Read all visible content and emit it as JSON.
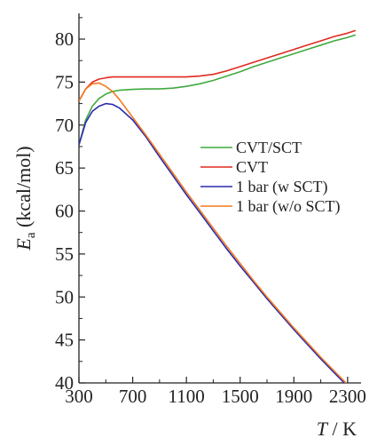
{
  "chart_data": {
    "type": "line",
    "xlabel": "T / K",
    "ylabel": "E_a (kcal/mol)",
    "xlim": [
      300,
      2400
    ],
    "ylim": [
      40,
      83
    ],
    "x_ticks": [
      300,
      700,
      1100,
      1500,
      1900,
      2300
    ],
    "y_ticks": [
      40,
      45,
      50,
      55,
      60,
      65,
      70,
      75,
      80
    ],
    "grid": false,
    "legend_position": "center-right",
    "series": [
      {
        "name": "CVT/SCT",
        "color": "#3faa3f",
        "points": [
          [
            300,
            67.7
          ],
          [
            350,
            70.6
          ],
          [
            400,
            72.2
          ],
          [
            450,
            73.1
          ],
          [
            500,
            73.6
          ],
          [
            550,
            73.9
          ],
          [
            600,
            74.05
          ],
          [
            700,
            74.15
          ],
          [
            800,
            74.2
          ],
          [
            900,
            74.2
          ],
          [
            1000,
            74.3
          ],
          [
            1100,
            74.5
          ],
          [
            1200,
            74.8
          ],
          [
            1300,
            75.2
          ],
          [
            1400,
            75.7
          ],
          [
            1500,
            76.2
          ],
          [
            1600,
            76.8
          ],
          [
            1700,
            77.3
          ],
          [
            1800,
            77.8
          ],
          [
            1900,
            78.3
          ],
          [
            2000,
            78.8
          ],
          [
            2100,
            79.3
          ],
          [
            2200,
            79.8
          ],
          [
            2300,
            80.2
          ],
          [
            2360,
            80.5
          ]
        ]
      },
      {
        "name": "CVT",
        "color": "#e02a1f",
        "points": [
          [
            300,
            72.8
          ],
          [
            350,
            74.2
          ],
          [
            400,
            75.0
          ],
          [
            450,
            75.35
          ],
          [
            500,
            75.5
          ],
          [
            550,
            75.6
          ],
          [
            600,
            75.6
          ],
          [
            700,
            75.6
          ],
          [
            800,
            75.6
          ],
          [
            900,
            75.6
          ],
          [
            1000,
            75.6
          ],
          [
            1100,
            75.6
          ],
          [
            1200,
            75.7
          ],
          [
            1300,
            75.9
          ],
          [
            1400,
            76.3
          ],
          [
            1500,
            76.8
          ],
          [
            1600,
            77.3
          ],
          [
            1700,
            77.8
          ],
          [
            1800,
            78.3
          ],
          [
            1900,
            78.8
          ],
          [
            2000,
            79.3
          ],
          [
            2100,
            79.8
          ],
          [
            2200,
            80.3
          ],
          [
            2300,
            80.7
          ],
          [
            2360,
            81.0
          ]
        ]
      },
      {
        "name": "1 bar (w SCT)",
        "color": "#2a2ab0",
        "points": [
          [
            300,
            67.7
          ],
          [
            350,
            70.3
          ],
          [
            400,
            71.6
          ],
          [
            450,
            72.2
          ],
          [
            500,
            72.5
          ],
          [
            550,
            72.4
          ],
          [
            600,
            72.0
          ],
          [
            700,
            70.6
          ],
          [
            800,
            68.6
          ],
          [
            900,
            66.3
          ],
          [
            1000,
            64.1
          ],
          [
            1100,
            61.9
          ],
          [
            1200,
            59.8
          ],
          [
            1300,
            57.7
          ],
          [
            1400,
            55.6
          ],
          [
            1500,
            53.6
          ],
          [
            1600,
            51.7
          ],
          [
            1700,
            49.8
          ],
          [
            1800,
            48.0
          ],
          [
            1900,
            46.2
          ],
          [
            2000,
            44.5
          ],
          [
            2100,
            42.8
          ],
          [
            2200,
            41.2
          ],
          [
            2300,
            39.6
          ],
          [
            2360,
            38.7
          ]
        ]
      },
      {
        "name": "1 bar (w/o SCT)",
        "color": "#f27a1f",
        "points": [
          [
            300,
            72.8
          ],
          [
            350,
            74.2
          ],
          [
            400,
            74.8
          ],
          [
            450,
            74.9
          ],
          [
            500,
            74.5
          ],
          [
            550,
            73.9
          ],
          [
            600,
            73.0
          ],
          [
            700,
            70.9
          ],
          [
            800,
            68.8
          ],
          [
            900,
            66.6
          ],
          [
            1000,
            64.4
          ],
          [
            1100,
            62.2
          ],
          [
            1200,
            60.1
          ],
          [
            1300,
            58.0
          ],
          [
            1400,
            55.9
          ],
          [
            1500,
            53.9
          ],
          [
            1600,
            51.9
          ],
          [
            1700,
            50.0
          ],
          [
            1800,
            48.2
          ],
          [
            1900,
            46.4
          ],
          [
            2000,
            44.7
          ],
          [
            2100,
            43.0
          ],
          [
            2200,
            41.4
          ],
          [
            2300,
            39.8
          ],
          [
            2360,
            38.9
          ]
        ]
      }
    ]
  }
}
